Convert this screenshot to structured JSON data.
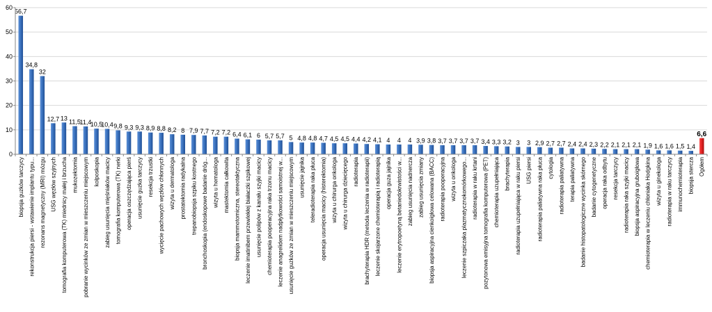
{
  "chart_data": {
    "type": "bar",
    "ylim": [
      0,
      60
    ],
    "yticks": [
      0,
      10,
      20,
      30,
      40,
      50,
      60
    ],
    "grid": true,
    "legend": "none",
    "colors": {
      "bar": "#3d74c0",
      "highlight": "#e02020",
      "grid": "#d9d9d9"
    },
    "highlight_category": "Ogółem",
    "categories": [
      "biopsja guzków tarczycy",
      "rekonstrukcja piersi - wstawienie implantu typu...",
      "rezonans magnetyczny (MRI) mózgu",
      "USG węzłów szyjnych",
      "tomografia komputerowa (TK) miednicy małej i brzucha",
      "mukozektomia",
      "pobranie wycinków ze zmian w mieszczeniu miejscowym",
      "kolposkopia",
      "zabieg usunięcia mięśniaków macicy",
      "tomografia komputerowa (TK) nerki",
      "operacja oszczędzająca pierś",
      "usunięcie guzka tarczycy",
      "resekcja trzustki",
      "wycięcie pachowych węzłów chłonnych",
      "wizyta u dermatologa",
      "prostatektomia radykalna",
      "trepanobiopsja szpiku kostnego",
      "bronchoskopia (endoskopowe badanie dróg...",
      "wizyta u hematologa",
      "mastektomia całkowita",
      "biopsja mammotomiczna, stereotaktyczna",
      "leczenie imatinibem przewlekłej białaczki szpikowej",
      "usunięcie polipów z kanału szyjki macicy",
      "chemioterapia pooperacyjna raka trzonu macicy",
      "leczenie anagrelidem nadpłytkowości samoistnej w...",
      "usunięcie guzków ze zmian w mieszczeniu miejscowym",
      "usunięcie jajnika",
      "teleradioterapia raka płuca",
      "operacja usunięcia macicy (histerektomia)",
      "wizyta u chirurga onkologa",
      "wizyta u chirurga dziecięcego",
      "radioterapia",
      "brachyterapia HDR (metoda leczenia w radioterapii)",
      "leczenie skojarzone chemioterapią i radioterapią",
      "operacja guza jajnika",
      "leczenie erytropoetyną betaniedokrwistości w...",
      "zabieg usunięcia nadnercza",
      "zabieg usunięcia zmiany",
      "biopsja aspiracyjna cienkoigłowa celowana (BACC)",
      "radioterapia pooperacyjna",
      "wizyta u onkologa",
      "leczenie szpiczaka plazmatycznokomórkowego...",
      "radioterapia w raku krtani",
      "pozytonowa emisyjna tomografia komputerowa (PET)",
      "chemioterapia uzupełniająca",
      "brachyterapia",
      "radioterapia uzupełniająca w raku piersi",
      "USG piersi",
      "radioterapia paliatywna raka płuca",
      "cytologia",
      "radioterapia paliatywna",
      "terapia paliatywna",
      "badanie histopatologiczne wycinka skórnego",
      "badanie cytogenetyczne",
      "operacja raka odbytu",
      "resekcja tarczycy",
      "radioterapia raka szyjki macicy",
      "biopsja aspiracyjna gruboigłowa",
      "chemioterapia w leczeniu chłoniaka Hodgkina",
      "wizyta u ginekologa",
      "radioterapia w raku tarczycy",
      "immunochemioterapia",
      "biopsja sterczа",
      "Ogółem"
    ],
    "values": [
      56.7,
      34.8,
      32,
      12.7,
      13,
      11.5,
      11.4,
      10.5,
      10.4,
      9.8,
      9.3,
      9.3,
      8.9,
      8.8,
      8.2,
      8,
      7.9,
      7.7,
      7.2,
      7.2,
      6.4,
      6.1,
      6,
      5.7,
      5.7,
      5,
      4.8,
      4.8,
      4.7,
      4.5,
      4.5,
      4.4,
      4.2,
      4.1,
      4,
      4,
      4,
      3.9,
      3.8,
      3.7,
      3.7,
      3.7,
      3.7,
      3.4,
      3.3,
      3.2,
      3,
      3,
      2.9,
      2.7,
      2.7,
      2.4,
      2.4,
      2.3,
      2.2,
      2.1,
      2.1,
      2.1,
      1.9,
      1.6,
      1.6,
      1.5,
      1.4,
      6.6
    ],
    "labels": [
      "56,7",
      "34,8",
      "32",
      "12,7",
      "13",
      "11,5",
      "11,4",
      "10,5",
      "10,4",
      "9,8",
      "9,3",
      "9,3",
      "8,9",
      "8,8",
      "8,2",
      "8",
      "7,9",
      "7,7",
      "7,2",
      "7,2",
      "6,4",
      "6,1",
      "6",
      "5,7",
      "5,7",
      "5",
      "4,8",
      "4,8",
      "4,7",
      "4,5",
      "4,5",
      "4,4",
      "4,2",
      "4,1",
      "4",
      "4",
      "4",
      "3,9",
      "3,8",
      "3,7",
      "3,7",
      "3,7",
      "3,7",
      "3,4",
      "3,3",
      "3,2",
      "3",
      "3",
      "2,9",
      "2,7",
      "2,7",
      "2,4",
      "2,4",
      "2,3",
      "2,2",
      "2,1",
      "2,1",
      "2,1",
      "1,9",
      "1,6",
      "1,6",
      "1,5",
      "1,4",
      "6,6"
    ]
  }
}
